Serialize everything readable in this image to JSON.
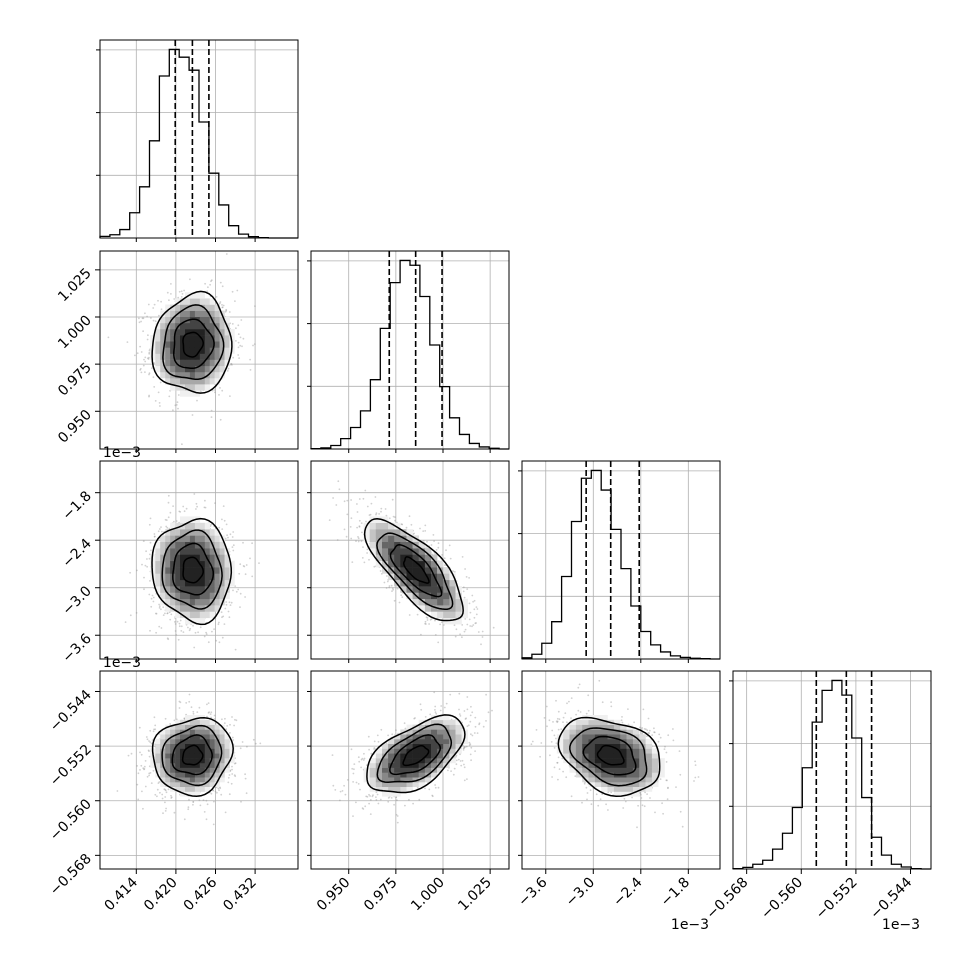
{
  "chart_data": {
    "type": "corner",
    "parameters": [
      {
        "range": [
          0.4085,
          0.4385
        ],
        "ticks": [
          0.414,
          0.42,
          0.426,
          0.432
        ],
        "tick_labels": [
          "0.414",
          "0.420",
          "0.426",
          "0.432"
        ],
        "offset_label": "",
        "quantiles": [
          0.4199,
          0.4225,
          0.425
        ],
        "hist_bin_start": 0.4085,
        "hist_bin_width": 0.0015,
        "hist_counts": [
          5,
          10,
          26,
          78,
          158,
          300,
          500,
          582,
          558,
          518,
          358,
          200,
          102,
          38,
          12,
          4,
          1,
          0,
          0,
          0
        ]
      },
      {
        "range": [
          0.93,
          1.035
        ],
        "ticks": [
          0.95,
          0.975,
          1.0,
          1.025
        ],
        "tick_labels": [
          "0.950",
          "0.975",
          "1.000",
          "1.025"
        ],
        "offset_label": "",
        "quantiles": [
          0.9715,
          0.9855,
          0.9995
        ],
        "hist_bin_start": 0.93,
        "hist_bin_width": 0.00525,
        "hist_counts": [
          1,
          3,
          10,
          30,
          62,
          110,
          200,
          348,
          480,
          544,
          530,
          440,
          300,
          180,
          90,
          42,
          16,
          6,
          2,
          0
        ]
      },
      {
        "range": [
          -3.9,
          -1.4
        ],
        "ticks": [
          -3.6,
          -3.0,
          -2.4,
          -1.8
        ],
        "tick_labels": [
          "−3.6",
          "−3.0",
          "−2.4",
          "−1.8"
        ],
        "offset_label": "1e−3",
        "quantiles": [
          -3.09,
          -2.78,
          -2.42
        ],
        "hist_bin_start": -3.9,
        "hist_bin_width": 0.125,
        "hist_counts": [
          3,
          12,
          40,
          95,
          210,
          350,
          460,
          480,
          430,
          330,
          230,
          135,
          70,
          36,
          18,
          8,
          4,
          2,
          1,
          0
        ]
      },
      {
        "range": [
          -0.57,
          -0.541
        ],
        "ticks": [
          -0.568,
          -0.56,
          -0.552,
          -0.544
        ],
        "tick_labels": [
          "−0.568",
          "−0.560",
          "−0.552",
          "−0.544"
        ],
        "offset_label": "1e−3",
        "quantiles": [
          -0.5578,
          -0.5534,
          -0.5497
        ],
        "hist_bin_start": -0.57,
        "hist_bin_width": 0.00145,
        "hist_counts": [
          1,
          4,
          12,
          22,
          50,
          90,
          155,
          255,
          370,
          450,
          475,
          438,
          330,
          180,
          80,
          35,
          12,
          5,
          1,
          0
        ]
      }
    ],
    "pairs": [
      {
        "row": 1,
        "col": 0,
        "mean": [
          0.4225,
          0.9855
        ],
        "sd": [
          0.003,
          0.013
        ],
        "corr": 0.05
      },
      {
        "row": 2,
        "col": 0,
        "mean": [
          0.4225,
          -2.78
        ],
        "sd": [
          0.003,
          0.32
        ],
        "corr": -0.05
      },
      {
        "row": 2,
        "col": 1,
        "mean": [
          0.9855,
          -2.78
        ],
        "sd": [
          0.013,
          0.32
        ],
        "corr": -0.75
      },
      {
        "row": 3,
        "col": 0,
        "mean": [
          0.4225,
          -0.5534
        ],
        "sd": [
          0.003,
          0.0028
        ],
        "corr": 0.08
      },
      {
        "row": 3,
        "col": 1,
        "mean": [
          0.9855,
          -0.5534
        ],
        "sd": [
          0.013,
          0.0028
        ],
        "corr": 0.55
      },
      {
        "row": 3,
        "col": 2,
        "mean": [
          -2.78,
          -0.5534
        ],
        "sd": [
          0.32,
          0.0028
        ],
        "corr": -0.3
      }
    ],
    "contour_levels_sigma": [
      0.5,
      1.0,
      1.5,
      2.0
    ],
    "grid": true,
    "title": "",
    "legend": "none"
  }
}
